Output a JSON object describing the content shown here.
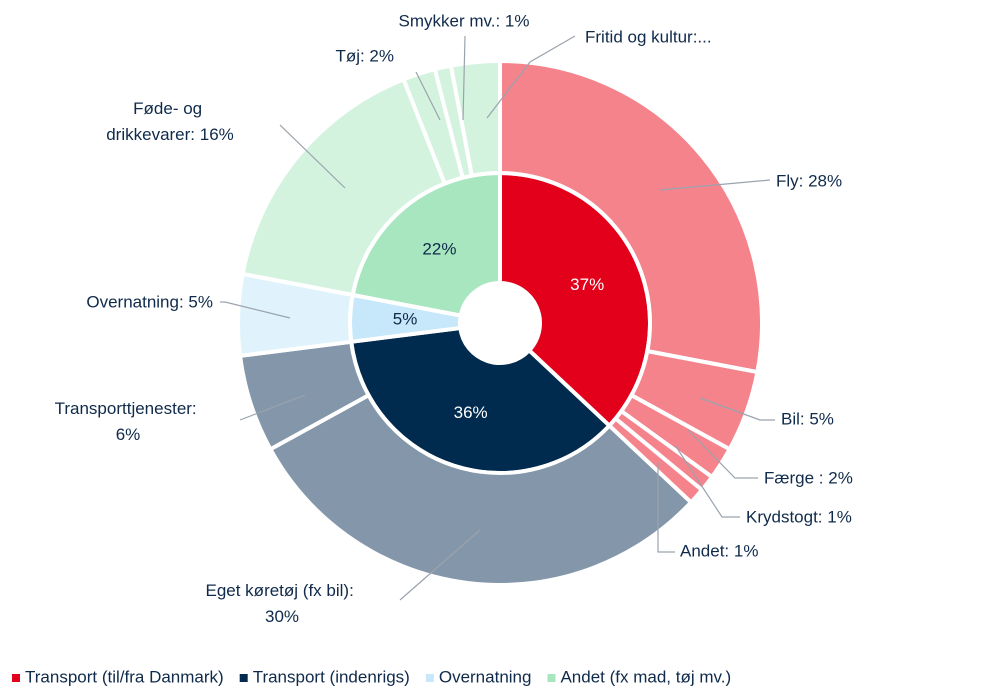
{
  "chart_data": {
    "type": "sunburst",
    "rings": [
      {
        "name": "inner",
        "categories": [
          "Transport (til/fra Danmark)",
          "Transport (indenrigs)",
          "Overnatning",
          "Andet (fx mad, tøj mv.)"
        ],
        "colors": [
          "#e2001a",
          "#002a4e",
          "#c6e8fa",
          "#a8e6c0"
        ],
        "values": [
          37,
          36,
          5,
          22
        ],
        "value_labels": [
          "37%",
          "36%",
          "5%",
          "22%"
        ]
      },
      {
        "name": "outer",
        "colors": [
          "#f4838c",
          "#f4838c",
          "#f4838c",
          "#f4838c",
          "#f4838c",
          "#8497aa",
          "#8497aa",
          "#e0f3fc",
          "#d3f3df",
          "#d3f3df",
          "#d3f3df",
          "#d3f3df"
        ],
        "values": [
          28,
          5,
          2,
          1,
          1,
          30,
          6,
          5,
          16,
          2,
          1,
          3
        ],
        "value_labels": [
          "Fly: 28%",
          "Bil: 5%",
          "Færge : 2%",
          "Krydstogt: 1%",
          "Andet: 1%",
          "Eget køretøj (fx bil): 30%",
          "Transporttjenester: 6%",
          "Overnatning: 5%",
          "Føde- og drikkevarer: 16%",
          "Tøj: 2%",
          "Smykker mv.: 1%",
          "Fritid og kultur:..."
        ]
      }
    ],
    "legend": "bottom"
  }
}
